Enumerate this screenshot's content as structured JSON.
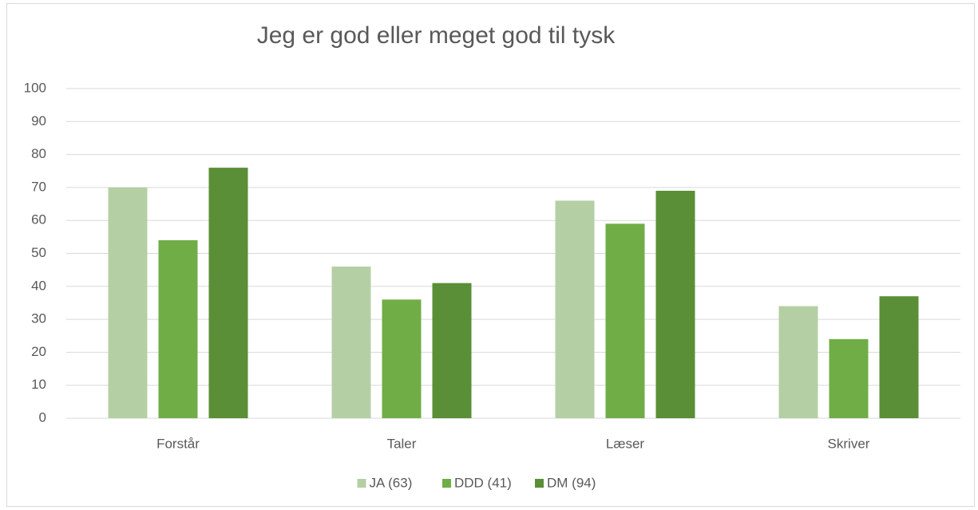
{
  "chart_data": {
    "type": "bar",
    "title": "Jeg er god eller meget god til tysk",
    "categories": [
      "Forstår",
      "Taler",
      "Læser",
      "Skriver"
    ],
    "series": [
      {
        "name": "JA (63)",
        "color": "#b5cfa5",
        "values": [
          70,
          46,
          66,
          34
        ]
      },
      {
        "name": "DDD (41)",
        "color": "#70ad47",
        "values": [
          54,
          36,
          59,
          24
        ]
      },
      {
        "name": "DM (94)",
        "color": "#5a8f37",
        "values": [
          76,
          41,
          69,
          37
        ]
      }
    ],
    "ylim": [
      0,
      100
    ],
    "yticks": [
      0,
      10,
      20,
      30,
      40,
      50,
      60,
      70,
      80,
      90,
      100
    ],
    "grid": true,
    "legend": "bottom"
  }
}
